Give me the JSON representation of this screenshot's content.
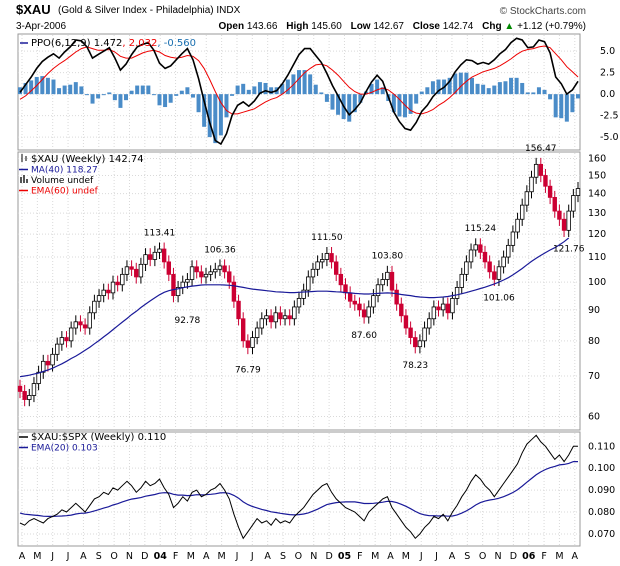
{
  "header": {
    "symbol": "$XAU",
    "description": "(Gold & Silver Index - Philadelphia) INDX",
    "date": "3-Apr-2006",
    "source": "© StockCharts.com",
    "open_label": "Open",
    "open": "143.66",
    "high_label": "High",
    "high": "145.60",
    "low_label": "Low",
    "low": "142.67",
    "close_label": "Close",
    "close": "142.74",
    "chg_label": "Chg",
    "chg": "+1.12 (+0.79%)",
    "chg_arrow": "▲"
  },
  "colors": {
    "frame": "#999999",
    "grid": "#d9d9d9",
    "up": "#000000",
    "down": "#cc0033",
    "ma": "#1a1a99",
    "ema": "#ee0000",
    "histogram": "#4a8cc8",
    "ratio": "#000000",
    "ratio_ema": "#1a1a99"
  },
  "chart_data": [
    {
      "type": "line",
      "panel": "ppo",
      "legend": {
        "prefix": "PPO(6,12,9)",
        "values": [
          {
            "text": "1.472",
            "color": "#000000"
          },
          {
            "text": "2.032",
            "color": "#ee0000"
          },
          {
            "text": "-0.560",
            "color": "#1a6fb0"
          }
        ]
      },
      "y_ticks": [
        "5.0",
        "2.5",
        "0.0",
        "-2.5",
        "-5.0"
      ],
      "ylim": [
        -6.5,
        7.0
      ],
      "series": [
        {
          "name": "PPO",
          "values": [
            0.2,
            1.1,
            2.0,
            3.0,
            3.8,
            4.3,
            4.7,
            4.2,
            4.9,
            5.5,
            6.3,
            6.2,
            5.5,
            4.2,
            4.6,
            5.0,
            5.4,
            4.2,
            2.8,
            3.5,
            4.6,
            5.5,
            5.8,
            6.0,
            5.1,
            3.6,
            3.0,
            3.3,
            4.0,
            4.7,
            5.3,
            4.0,
            1.8,
            -0.8,
            -3.3,
            -5.4,
            -5.8,
            -4.6,
            -2.5,
            -1.3,
            -0.9,
            -1.4,
            -0.8,
            0.1,
            0.4,
            0.2,
            0.4,
            1.2,
            2.2,
            3.4,
            4.6,
            5.3,
            5.3,
            4.5,
            3.7,
            2.4,
            1.0,
            -0.2,
            -1.4,
            -2.4,
            -1.8,
            -1.0,
            0.3,
            1.4,
            2.2,
            1.5,
            -0.3,
            -2.1,
            -3.2,
            -4.0,
            -4.2,
            -3.3,
            -2.0,
            -1.3,
            -0.3,
            0.4,
            0.8,
            1.5,
            2.6,
            3.4,
            4.0,
            3.9,
            3.5,
            3.7,
            3.5,
            4.0,
            4.7,
            5.2,
            6.0,
            6.5,
            6.3,
            5.4,
            5.5,
            6.3,
            6.1,
            4.8,
            2.0,
            1.2,
            0.0,
            0.5,
            1.5
          ]
        },
        {
          "name": "Signal",
          "values": [
            -0.6,
            -0.2,
            0.4,
            1.0,
            1.7,
            2.4,
            3.0,
            3.5,
            3.9,
            4.4,
            4.9,
            5.3,
            5.5,
            5.3,
            5.1,
            5.1,
            5.2,
            4.9,
            4.4,
            4.2,
            4.2,
            4.5,
            4.8,
            5.0,
            5.1,
            4.9,
            4.5,
            4.3,
            4.2,
            4.3,
            4.5,
            4.4,
            3.9,
            3.0,
            1.7,
            0.3,
            -1.0,
            -1.9,
            -2.3,
            -2.3,
            -2.1,
            -1.9,
            -1.7,
            -1.3,
            -0.9,
            -0.6,
            -0.4,
            0.0,
            0.5,
            1.1,
            1.8,
            2.5,
            3.0,
            3.4,
            3.5,
            3.3,
            2.8,
            2.2,
            1.5,
            0.8,
            0.3,
            0.0,
            0.0,
            0.2,
            0.5,
            0.7,
            0.5,
            0.0,
            -0.6,
            -1.3,
            -1.9,
            -2.2,
            -2.3,
            -2.1,
            -1.8,
            -1.3,
            -0.9,
            -0.4,
            0.2,
            0.9,
            1.5,
            2.0,
            2.3,
            2.6,
            2.8,
            3.0,
            3.3,
            3.7,
            4.1,
            4.6,
            5.0,
            5.2,
            5.3,
            5.5,
            5.6,
            5.4,
            4.7,
            4.0,
            3.2,
            2.6,
            2.0
          ]
        }
      ]
    },
    {
      "type": "candlestick",
      "panel": "price",
      "legend": [
        {
          "text": "$XAU (Weekly) 142.74",
          "swatch": "ohlc"
        },
        {
          "text": "MA(40) 118.27",
          "swatch": "ma"
        },
        {
          "text": "Volume undef",
          "swatch": "volume"
        },
        {
          "text": "EMA(60) undef",
          "swatch": "ema"
        }
      ],
      "y_scale": "log",
      "ylim": [
        57,
        164
      ],
      "y_ticks": [
        160,
        150,
        140,
        130,
        120,
        110,
        100,
        90,
        80,
        70,
        60
      ],
      "series": [
        {
          "name": "Close",
          "values": [
            66,
            64,
            65,
            68,
            71,
            74,
            73,
            76,
            79,
            81,
            80,
            84,
            86,
            85,
            84,
            89,
            93,
            95,
            97,
            96,
            100,
            99,
            103,
            106,
            105,
            102,
            107,
            111,
            109,
            112,
            113.41,
            108,
            103,
            95,
            98,
            100,
            101,
            106,
            104,
            102,
            103,
            104,
            105,
            106.36,
            104,
            100,
            93,
            87,
            80,
            78,
            81,
            84,
            87,
            88,
            86,
            89,
            87,
            88,
            87,
            91,
            94,
            97,
            102,
            105,
            108,
            109,
            111.5,
            108,
            103,
            99,
            96,
            93,
            92,
            90,
            87.6,
            91,
            95,
            99,
            101,
            103.8,
            97,
            92,
            88,
            84,
            81,
            78.23,
            80,
            84,
            87,
            91,
            90,
            92,
            89,
            94,
            98,
            103,
            108,
            113,
            115.24,
            112,
            108,
            104,
            101.06,
            106,
            110,
            115,
            121,
            127,
            134,
            141,
            149,
            156.47,
            150,
            144,
            138,
            131,
            127,
            121.76,
            131,
            139,
            142.74
          ]
        },
        {
          "name": "MA(40)",
          "values": [
            69.8,
            70.0,
            70.2,
            70.5,
            70.8,
            71.2,
            71.6,
            72.1,
            72.7,
            73.3,
            74.0,
            74.8,
            75.5,
            76.3,
            77.2,
            78.1,
            79.1,
            80.1,
            81.2,
            82.3,
            83.5,
            84.7,
            85.9,
            87.1,
            88.4,
            89.5,
            90.8,
            92.0,
            93.1,
            94.2,
            95.3,
            96.2,
            96.8,
            97.2,
            97.5,
            97.9,
            98.2,
            98.5,
            98.7,
            98.9,
            99.0,
            99.0,
            99.0,
            99.0,
            98.9,
            98.8,
            98.6,
            98.3,
            98.0,
            97.7,
            97.4,
            97.2,
            97.0,
            96.8,
            96.6,
            96.4,
            96.3,
            96.2,
            96.1,
            96.1,
            96.2,
            96.3,
            96.4,
            96.5,
            96.6,
            96.6,
            96.6,
            96.5,
            96.4,
            96.3,
            96.1,
            96.0,
            95.8,
            95.7,
            95.6,
            95.6,
            95.7,
            95.8,
            95.9,
            96.0,
            95.9,
            95.7,
            95.4,
            95.2,
            95.0,
            94.7,
            94.5,
            94.4,
            94.3,
            94.3,
            94.4,
            94.5,
            94.7,
            95.0,
            95.3,
            95.7,
            96.1,
            96.6,
            97.1,
            97.6,
            98.1,
            98.7,
            99.3,
            100.0,
            100.8,
            101.7,
            102.8,
            104.0,
            105.3,
            106.8,
            108.2,
            109.5,
            110.7,
            111.9,
            113.0,
            114.0,
            115.2,
            116.6,
            118.27
          ]
        }
      ],
      "annotations": [
        {
          "text": "113.41",
          "x_index": 30,
          "value": 113.41,
          "position": "above"
        },
        {
          "text": "92.78",
          "x_index": 36,
          "value": 92.78,
          "position": "below"
        },
        {
          "text": "106.36",
          "x_index": 43,
          "value": 106.36,
          "position": "above"
        },
        {
          "text": "76.79",
          "x_index": 49,
          "value": 76.79,
          "position": "below"
        },
        {
          "text": "111.50",
          "x_index": 66,
          "value": 111.5,
          "position": "above"
        },
        {
          "text": "103.80",
          "x_index": 79,
          "value": 103.8,
          "position": "above"
        },
        {
          "text": "87.60",
          "x_index": 74,
          "value": 87.6,
          "position": "below"
        },
        {
          "text": "78.23",
          "x_index": 85,
          "value": 78.23,
          "position": "below"
        },
        {
          "text": "115.24",
          "x_index": 99,
          "value": 115.24,
          "position": "above"
        },
        {
          "text": "101.06",
          "x_index": 103,
          "value": 101.06,
          "position": "below"
        },
        {
          "text": "156.47",
          "x_index": 112,
          "value": 156.47,
          "position": "above"
        },
        {
          "text": "121.76",
          "x_index": 118,
          "value": 121.76,
          "position": "below"
        }
      ]
    },
    {
      "type": "line",
      "panel": "ratio",
      "legend": [
        {
          "text": "$XAU:$SPX (Weekly) 0.110",
          "swatch": "line"
        },
        {
          "text": "EMA(20) 0.103",
          "swatch": "ema"
        }
      ],
      "ylim": [
        0.0645,
        0.1165
      ],
      "y_ticks": [
        "0.110",
        "0.100",
        "0.090",
        "0.080",
        "0.070"
      ],
      "series": [
        {
          "name": "$XAU:$SPX",
          "values": [
            0.075,
            0.074,
            0.076,
            0.077,
            0.076,
            0.075,
            0.077,
            0.078,
            0.079,
            0.081,
            0.08,
            0.082,
            0.084,
            0.082,
            0.08,
            0.083,
            0.086,
            0.087,
            0.089,
            0.088,
            0.091,
            0.09,
            0.092,
            0.094,
            0.092,
            0.089,
            0.091,
            0.094,
            0.092,
            0.093,
            0.095,
            0.091,
            0.088,
            0.082,
            0.084,
            0.087,
            0.085,
            0.089,
            0.09,
            0.087,
            0.088,
            0.09,
            0.091,
            0.093,
            0.09,
            0.086,
            0.079,
            0.073,
            0.068,
            0.071,
            0.074,
            0.077,
            0.075,
            0.076,
            0.074,
            0.077,
            0.075,
            0.076,
            0.075,
            0.078,
            0.08,
            0.082,
            0.085,
            0.088,
            0.09,
            0.092,
            0.093,
            0.089,
            0.086,
            0.084,
            0.082,
            0.081,
            0.08,
            0.078,
            0.076,
            0.08,
            0.082,
            0.084,
            0.086,
            0.087,
            0.082,
            0.079,
            0.076,
            0.073,
            0.071,
            0.068,
            0.07,
            0.073,
            0.075,
            0.078,
            0.077,
            0.079,
            0.076,
            0.08,
            0.083,
            0.087,
            0.09,
            0.094,
            0.097,
            0.095,
            0.092,
            0.09,
            0.087,
            0.09,
            0.093,
            0.096,
            0.099,
            0.102,
            0.107,
            0.111,
            0.113,
            0.115,
            0.112,
            0.11,
            0.107,
            0.104,
            0.106,
            0.103,
            0.106,
            0.11,
            0.11
          ]
        },
        {
          "name": "EMA(20)",
          "values": [
            0.0795,
            0.079,
            0.0788,
            0.0786,
            0.0784,
            0.0781,
            0.078,
            0.078,
            0.0781,
            0.0782,
            0.0783,
            0.0786,
            0.0791,
            0.0794,
            0.0795,
            0.0799,
            0.0805,
            0.0811,
            0.0818,
            0.0824,
            0.0832,
            0.0838,
            0.0846,
            0.0853,
            0.0859,
            0.0862,
            0.0866,
            0.0872,
            0.0876,
            0.088,
            0.0886,
            0.0888,
            0.0887,
            0.0881,
            0.0877,
            0.0877,
            0.0875,
            0.0876,
            0.0879,
            0.0878,
            0.0879,
            0.0881,
            0.0883,
            0.0887,
            0.0888,
            0.0885,
            0.0876,
            0.0863,
            0.0846,
            0.0834,
            0.0825,
            0.0819,
            0.0812,
            0.0807,
            0.0801,
            0.0798,
            0.0794,
            0.0791,
            0.0788,
            0.0787,
            0.0788,
            0.0791,
            0.0796,
            0.0804,
            0.0813,
            0.0824,
            0.0834,
            0.0839,
            0.0843,
            0.0845,
            0.0846,
            0.0846,
            0.0846,
            0.0843,
            0.0839,
            0.0839,
            0.084,
            0.0842,
            0.0845,
            0.0849,
            0.0848,
            0.0843,
            0.0835,
            0.0826,
            0.0815,
            0.0803,
            0.0793,
            0.0787,
            0.0783,
            0.0783,
            0.0782,
            0.0783,
            0.0781,
            0.0782,
            0.0787,
            0.0795,
            0.0805,
            0.0818,
            0.0832,
            0.0843,
            0.085,
            0.0855,
            0.0858,
            0.0863,
            0.087,
            0.0879,
            0.0889,
            0.0902,
            0.0918,
            0.0936,
            0.0953,
            0.097,
            0.0983,
            0.0994,
            0.1002,
            0.1008,
            0.1015,
            0.1017,
            0.1022,
            0.103,
            0.103
          ]
        }
      ]
    }
  ],
  "x_axis": {
    "labels": [
      "A",
      "M",
      "J",
      "J",
      "A",
      "S",
      "O",
      "N",
      "D",
      "04",
      "F",
      "M",
      "A",
      "M",
      "J",
      "J",
      "A",
      "S",
      "O",
      "N",
      "D",
      "05",
      "F",
      "M",
      "A",
      "M",
      "J",
      "J",
      "A",
      "S",
      "O",
      "N",
      "D",
      "06",
      "F",
      "M",
      "A"
    ],
    "bold": [
      "04",
      "05",
      "06"
    ]
  }
}
